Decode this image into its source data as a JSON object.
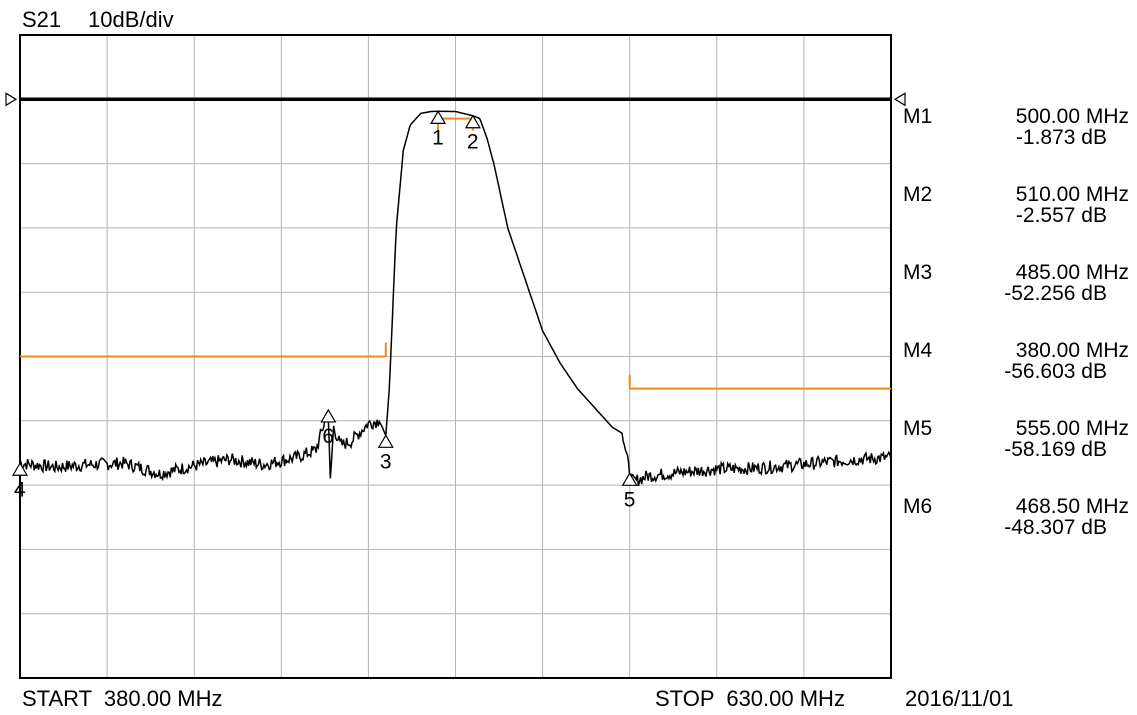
{
  "header": {
    "trace_label": "S21",
    "scale_label": "10dB/div"
  },
  "footer": {
    "start_label": "START  380.00 MHz",
    "stop_label": "STOP  630.00 MHz",
    "date": "2016/11/01"
  },
  "colors": {
    "trace": "#000000",
    "limit_line": "#f08a1c",
    "grid": "#b4b4b4",
    "reference": "#000000"
  },
  "markers": [
    {
      "id": "M1",
      "freq": "500.00 MHz",
      "value": "-1.873 dB"
    },
    {
      "id": "M2",
      "freq": "510.00 MHz",
      "value": "-2.557 dB"
    },
    {
      "id": "M3",
      "freq": "485.00 MHz",
      "value": "-52.256 dB"
    },
    {
      "id": "M4",
      "freq": "380.00 MHz",
      "value": "-56.603 dB"
    },
    {
      "id": "M5",
      "freq": "555.00 MHz",
      "value": "-58.169 dB"
    },
    {
      "id": "M6",
      "freq": "468.50 MHz",
      "value": "-48.307 dB"
    }
  ],
  "chart_data": {
    "type": "line",
    "title": "S21",
    "scale": "10dB/div",
    "xunit": "MHz",
    "yunit": "dB",
    "xlim": [
      380,
      630
    ],
    "ylim": [
      -90,
      10
    ],
    "reference_level_db": 0,
    "grid": true,
    "series": [
      {
        "name": "S21",
        "x": [
          380,
          390,
          400,
          410,
          420,
          430,
          440,
          450,
          460,
          465,
          468.5,
          469,
          470,
          472,
          475,
          480,
          483,
          484,
          485,
          486,
          488,
          490,
          492,
          495,
          498,
          500,
          505,
          510,
          512,
          514,
          516,
          518,
          520,
          525,
          530,
          535,
          540,
          545,
          550,
          553,
          555,
          556,
          560,
          570,
          580,
          590,
          600,
          610,
          620,
          630
        ],
        "y": [
          -56.6,
          -57.2,
          -56.8,
          -56.6,
          -58.2,
          -57.0,
          -56.0,
          -56.8,
          -55.6,
          -54.5,
          -48.3,
          -60,
          -51,
          -53.8,
          -53.2,
          -50.4,
          -50.0,
          -51,
          -52.3,
          -45,
          -20,
          -8,
          -4,
          -2.2,
          -1.9,
          -1.87,
          -1.9,
          -2.56,
          -3,
          -6,
          -10,
          -15,
          -20,
          -28,
          -36,
          -41,
          -45,
          -48,
          -51,
          -52,
          -58.2,
          -59.5,
          -58.6,
          -58.0,
          -57.5,
          -57.4,
          -57.0,
          -56.5,
          -56.0,
          -55.7
        ]
      }
    ],
    "limit_lines": [
      {
        "x": [
          380,
          485
        ],
        "y": -40
      },
      {
        "x": [
          500,
          510
        ],
        "y": -3
      },
      {
        "x": [
          555,
          630
        ],
        "y": -45
      }
    ],
    "marker_points": [
      {
        "label": "1",
        "x": 500.0,
        "y": -1.873
      },
      {
        "label": "2",
        "x": 510.0,
        "y": -2.557
      },
      {
        "label": "3",
        "x": 485.0,
        "y": -52.256
      },
      {
        "label": "4",
        "x": 380.0,
        "y": -56.603
      },
      {
        "label": "5",
        "x": 555.0,
        "y": -58.169
      },
      {
        "label": "6",
        "x": 468.5,
        "y": -48.307
      }
    ]
  }
}
